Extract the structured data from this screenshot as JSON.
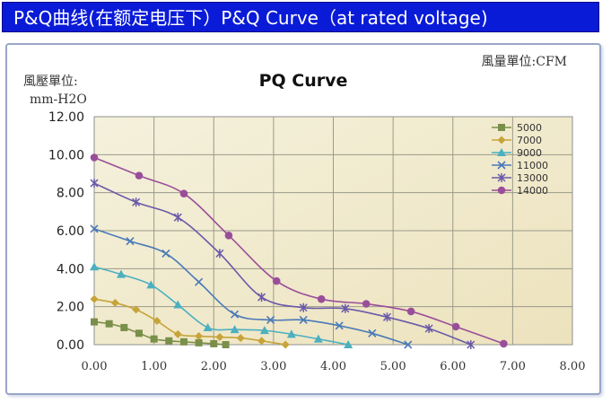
{
  "banner": {
    "text": "P&Q曲线(在额定电压下）P&Q Curve（at rated voltage)"
  },
  "chart_data": {
    "type": "line",
    "title": "PQ Curve",
    "ylabel_line1": "風壓單位:",
    "ylabel_line2": "mm-H2O",
    "xlabel": "風量單位:CFM",
    "xlim": [
      0,
      8
    ],
    "ylim": [
      0,
      12
    ],
    "x_ticks": [
      "0.00",
      "1.00",
      "2.00",
      "3.00",
      "4.00",
      "5.00",
      "6.00",
      "7.00",
      "8.00"
    ],
    "y_ticks": [
      "0.00",
      "2.00",
      "4.00",
      "6.00",
      "8.00",
      "10.00",
      "12.00"
    ],
    "grid": true,
    "legend_position": "top-right",
    "series": [
      {
        "name": "5000",
        "color": "#7a8f4a",
        "marker": "square",
        "points": [
          [
            0,
            1.2
          ],
          [
            0.25,
            1.1
          ],
          [
            0.5,
            0.9
          ],
          [
            0.75,
            0.6
          ],
          [
            1.0,
            0.3
          ],
          [
            1.25,
            0.2
          ],
          [
            1.5,
            0.15
          ],
          [
            1.75,
            0.1
          ],
          [
            2.0,
            0.05
          ],
          [
            2.2,
            0.0
          ]
        ]
      },
      {
        "name": "7000",
        "color": "#c7a43a",
        "marker": "diamond",
        "points": [
          [
            0,
            2.4
          ],
          [
            0.35,
            2.2
          ],
          [
            0.7,
            1.85
          ],
          [
            1.05,
            1.25
          ],
          [
            1.4,
            0.55
          ],
          [
            1.75,
            0.45
          ],
          [
            2.1,
            0.4
          ],
          [
            2.45,
            0.35
          ],
          [
            2.8,
            0.2
          ],
          [
            3.2,
            0.0
          ]
        ]
      },
      {
        "name": "9000",
        "color": "#4bb0c0",
        "marker": "triangle",
        "points": [
          [
            0,
            4.1
          ],
          [
            0.45,
            3.7
          ],
          [
            0.95,
            3.15
          ],
          [
            1.4,
            2.1
          ],
          [
            1.9,
            0.9
          ],
          [
            2.35,
            0.8
          ],
          [
            2.85,
            0.75
          ],
          [
            3.3,
            0.55
          ],
          [
            3.75,
            0.3
          ],
          [
            4.25,
            0.0
          ]
        ]
      },
      {
        "name": "11000",
        "color": "#4a7ab8",
        "marker": "x",
        "points": [
          [
            0,
            6.1
          ],
          [
            0.6,
            5.45
          ],
          [
            1.2,
            4.8
          ],
          [
            1.75,
            3.3
          ],
          [
            2.35,
            1.6
          ],
          [
            2.95,
            1.3
          ],
          [
            3.5,
            1.3
          ],
          [
            4.1,
            1.0
          ],
          [
            4.65,
            0.6
          ],
          [
            5.25,
            0.0
          ]
        ]
      },
      {
        "name": "13000",
        "color": "#6a5aa8",
        "marker": "star",
        "points": [
          [
            0,
            8.5
          ],
          [
            0.7,
            7.5
          ],
          [
            1.4,
            6.7
          ],
          [
            2.1,
            4.8
          ],
          [
            2.8,
            2.5
          ],
          [
            3.5,
            1.95
          ],
          [
            4.2,
            1.9
          ],
          [
            4.9,
            1.45
          ],
          [
            5.6,
            0.85
          ],
          [
            6.3,
            0.0
          ]
        ]
      },
      {
        "name": "14000",
        "color": "#9a4e9a",
        "marker": "circle",
        "points": [
          [
            0,
            9.85
          ],
          [
            0.75,
            8.9
          ],
          [
            1.5,
            7.95
          ],
          [
            2.25,
            5.75
          ],
          [
            3.05,
            3.35
          ],
          [
            3.8,
            2.4
          ],
          [
            4.55,
            2.15
          ],
          [
            5.3,
            1.75
          ],
          [
            6.05,
            0.95
          ],
          [
            6.85,
            0.05
          ]
        ]
      }
    ]
  }
}
